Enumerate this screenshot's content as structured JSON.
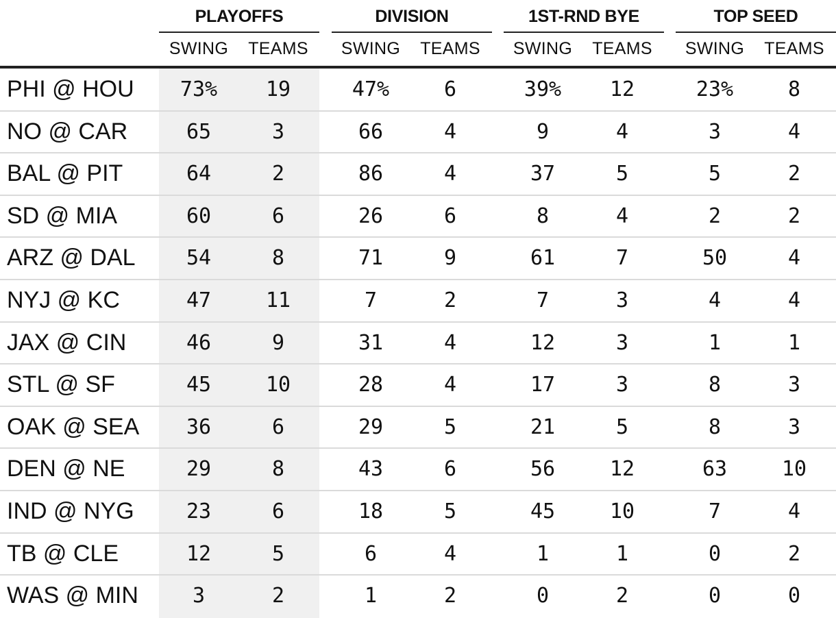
{
  "chart_data": {
    "type": "table",
    "groups": [
      "PLAYOFFS",
      "DIVISION",
      "1ST-RND BYE",
      "TOP SEED"
    ],
    "subheaders": [
      "SWING",
      "TEAMS"
    ],
    "rows": [
      {
        "game": "PHI @ HOU",
        "values": [
          "73%",
          "19",
          "47%",
          "6",
          "39%",
          "12",
          "23%",
          "8"
        ]
      },
      {
        "game": "NO @ CAR",
        "values": [
          "65",
          "3",
          "66",
          "4",
          "9",
          "4",
          "3",
          "4"
        ]
      },
      {
        "game": "BAL @ PIT",
        "values": [
          "64",
          "2",
          "86",
          "4",
          "37",
          "5",
          "5",
          "2"
        ]
      },
      {
        "game": "SD @ MIA",
        "values": [
          "60",
          "6",
          "26",
          "6",
          "8",
          "4",
          "2",
          "2"
        ]
      },
      {
        "game": "ARZ @ DAL",
        "values": [
          "54",
          "8",
          "71",
          "9",
          "61",
          "7",
          "50",
          "4"
        ]
      },
      {
        "game": "NYJ @ KC",
        "values": [
          "47",
          "11",
          "7",
          "2",
          "7",
          "3",
          "4",
          "4"
        ]
      },
      {
        "game": "JAX @ CIN",
        "values": [
          "46",
          "9",
          "31",
          "4",
          "12",
          "3",
          "1",
          "1"
        ]
      },
      {
        "game": "STL @ SF",
        "values": [
          "45",
          "10",
          "28",
          "4",
          "17",
          "3",
          "8",
          "3"
        ]
      },
      {
        "game": "OAK @ SEA",
        "values": [
          "36",
          "6",
          "29",
          "5",
          "21",
          "5",
          "8",
          "3"
        ]
      },
      {
        "game": "DEN @ NE",
        "values": [
          "29",
          "8",
          "43",
          "6",
          "56",
          "12",
          "63",
          "10"
        ]
      },
      {
        "game": "IND @ NYG",
        "values": [
          "23",
          "6",
          "18",
          "5",
          "45",
          "10",
          "7",
          "4"
        ]
      },
      {
        "game": "TB @ CLE",
        "values": [
          "12",
          "5",
          "6",
          "4",
          "1",
          "1",
          "0",
          "2"
        ]
      },
      {
        "game": "WAS @ MIN",
        "values": [
          "3",
          "2",
          "1",
          "2",
          "0",
          "2",
          "0",
          "0"
        ]
      }
    ],
    "highlight_column": "PLAYOFFS",
    "colors": {
      "highlight_bg": "#f0f0f0",
      "rule": "#222222",
      "row_divider": "#dadada"
    }
  }
}
